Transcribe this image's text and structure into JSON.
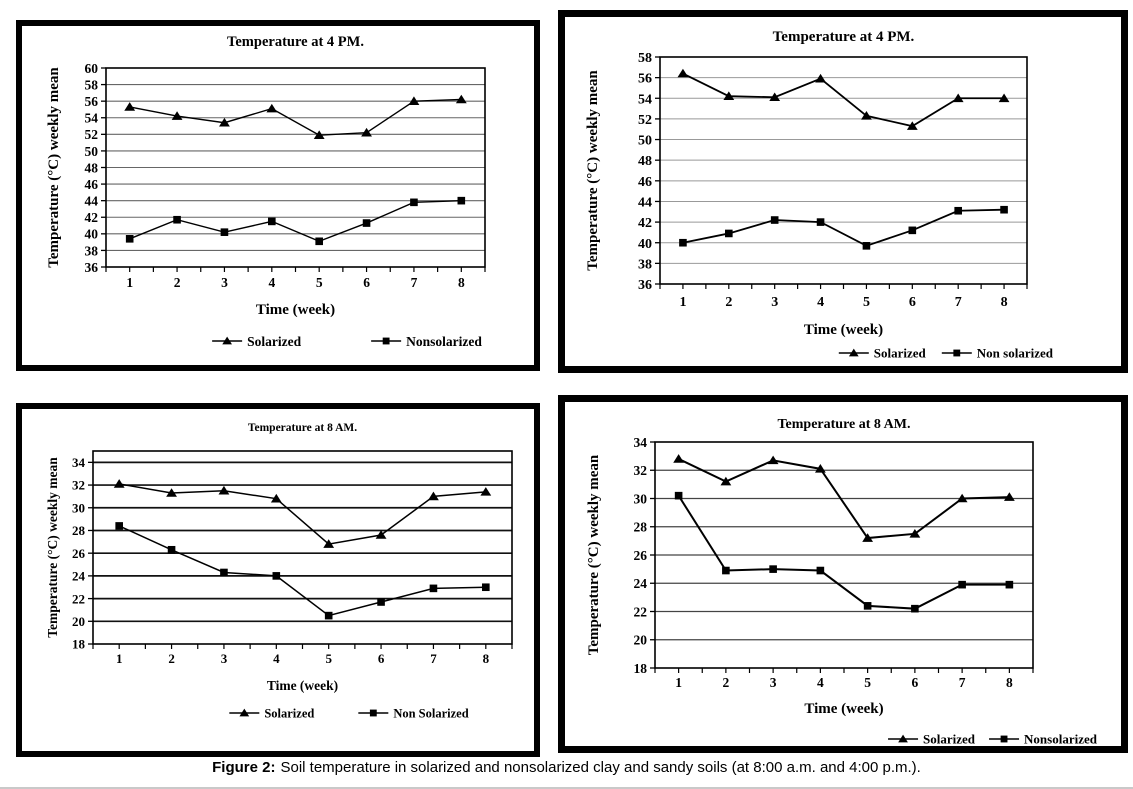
{
  "caption": {
    "prefix": "Figure 2:",
    "text": "Soil temperature in solarized and nonsolarized clay and sandy soils (at 8:00 a.m. and 4:00 p.m.)."
  },
  "colors": {
    "series_line": "#000000",
    "plot_border": "#000000",
    "panel_border": "#000000",
    "background": "#ffffff"
  },
  "chart_data": [
    {
      "type": "line",
      "panel": "top-left",
      "title": "Temperature at 4 PM.",
      "xlabel": "Time (week)",
      "ylabel": "Temperature (°C) weekly mean",
      "categories": [
        "1",
        "2",
        "3",
        "4",
        "5",
        "6",
        "7",
        "8"
      ],
      "ylim": [
        36,
        60
      ],
      "ytick": 2,
      "ytick_label_max": 60,
      "grid": "horizontal",
      "legend_position": "bottom-center",
      "series": [
        {
          "name": "Solarized",
          "marker": "triangle",
          "values": [
            55.3,
            54.2,
            53.4,
            55.1,
            51.9,
            52.2,
            56.0,
            56.2
          ]
        },
        {
          "name": "Nonsolarized",
          "marker": "square",
          "values": [
            39.4,
            41.7,
            40.2,
            41.5,
            39.1,
            41.3,
            43.8,
            44.0
          ]
        }
      ]
    },
    {
      "type": "line",
      "panel": "top-right",
      "title": "Temperature at 4 PM.",
      "xlabel": "Time (week)",
      "ylabel": "Temperature (°C) weekly mean",
      "categories": [
        "1",
        "2",
        "3",
        "4",
        "5",
        "6",
        "7",
        "8"
      ],
      "ylim": [
        36,
        58
      ],
      "ytick": 2,
      "ytick_label_max": 58,
      "grid": "horizontal",
      "legend_position": "bottom-right",
      "series": [
        {
          "name": "Solarized",
          "marker": "triangle",
          "values": [
            56.4,
            54.2,
            54.1,
            55.9,
            52.3,
            51.3,
            54.0,
            54.0
          ]
        },
        {
          "name": "Non solarized",
          "marker": "square",
          "values": [
            40.0,
            40.9,
            42.2,
            42.0,
            39.7,
            41.2,
            43.1,
            43.2
          ]
        }
      ]
    },
    {
      "type": "line",
      "panel": "bottom-left",
      "title": "Temperature at 8 AM.",
      "xlabel": "Time (week)",
      "ylabel": "Temperature (°C) weekly mean",
      "categories": [
        "1",
        "2",
        "3",
        "4",
        "5",
        "6",
        "7",
        "8"
      ],
      "ylim": [
        18,
        35
      ],
      "ytick": 2,
      "ytick_label_max": 34,
      "grid": "horizontal",
      "legend_position": "bottom-center",
      "series": [
        {
          "name": "Solarized",
          "marker": "triangle",
          "values": [
            32.1,
            31.3,
            31.5,
            30.8,
            26.8,
            27.6,
            31.0,
            31.4
          ]
        },
        {
          "name": "Non Solarized",
          "marker": "square",
          "values": [
            28.4,
            26.3,
            24.3,
            24.0,
            20.5,
            21.7,
            22.9,
            23.0
          ]
        }
      ]
    },
    {
      "type": "line",
      "panel": "bottom-right",
      "title": "Temperature at 8 AM.",
      "xlabel": "Time (week)",
      "ylabel": "Temperature (°C) weekly mean",
      "categories": [
        "1",
        "2",
        "3",
        "4",
        "5",
        "6",
        "7",
        "8"
      ],
      "ylim": [
        18,
        34
      ],
      "ytick": 2,
      "ytick_label_max": 34,
      "grid": "horizontal",
      "legend_position": "bottom-right",
      "series": [
        {
          "name": "Solarized",
          "marker": "triangle",
          "values": [
            32.8,
            31.2,
            32.7,
            32.1,
            27.2,
            27.5,
            30.0,
            30.1
          ]
        },
        {
          "name": "Nonsolarized",
          "marker": "square",
          "values": [
            30.2,
            24.9,
            25.0,
            24.9,
            22.4,
            22.2,
            23.9,
            23.9
          ]
        }
      ]
    }
  ]
}
